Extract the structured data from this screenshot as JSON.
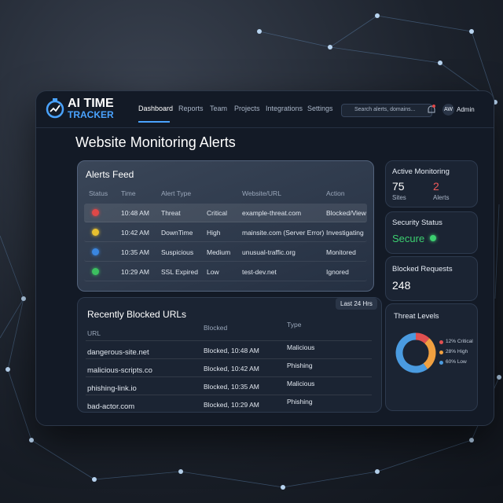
{
  "header": {
    "logo_line1": "AI TIME",
    "logo_line2": "TRACKER",
    "nav": [
      "Dashboard",
      "Reports",
      "Team",
      "Projects",
      "Integrations",
      "Settings"
    ],
    "search_placeholder": "Search alerts, domains...",
    "avatar": "AW",
    "user": "Admin"
  },
  "page_title": "Website Monitoring Alerts",
  "alerts_feed": {
    "title": "Alerts Feed",
    "columns": [
      "Status",
      "Time",
      "Alert Type",
      "Website/URL",
      "Action"
    ],
    "rows": [
      {
        "status_color": "#e04848",
        "time": "10:48 AM",
        "type": "Threat",
        "severity": "Critical",
        "url": "example-threat.com",
        "action": "Blocked/View"
      },
      {
        "status_color": "#e8c030",
        "time": "10:42 AM",
        "type": "DownTime",
        "severity": "High",
        "url": "mainsite.com (Server Error)",
        "action": "Investigating"
      },
      {
        "status_color": "#3a86e0",
        "time": "10:35 AM",
        "type": "Suspicious",
        "severity": "Medium",
        "url": "unusual-traffic.org",
        "action": "Monitored"
      },
      {
        "status_color": "#3cc060",
        "time": "10:29 AM",
        "type": "SSL Expired",
        "severity": "Low",
        "url": "test-dev.net",
        "action": "Ignored"
      }
    ]
  },
  "blocked_urls": {
    "title": "Recently Blocked URLs",
    "filter": "Last 24 Hrs",
    "columns": [
      "URL",
      "Blocked",
      "Type"
    ],
    "rows": [
      [
        "dangerous-site.net",
        "Blocked, 10:48 AM",
        "Malicious"
      ],
      [
        "malicious-scripts.co",
        "Blocked, 10:42 AM",
        "Phishing"
      ],
      [
        "phishing-link.io",
        "Blocked, 10:35 AM",
        "Malicious"
      ],
      [
        "bad-actor.com",
        "Blocked, 10:29 AM",
        "Phishing"
      ]
    ]
  },
  "active_monitoring": {
    "title": "Active Monitoring",
    "sites_count": 75,
    "sites_label": "Sites",
    "alerts_count": 2,
    "alerts_label": "Alerts"
  },
  "security_status": {
    "title": "Security Status",
    "value": "Secure"
  },
  "blocked_requests": {
    "title": "Blocked Requests",
    "value": 248
  },
  "threat_levels": {
    "title": "Threat Levels",
    "segments": [
      {
        "label": "12% Critical",
        "value": 12,
        "color": "#e05050"
      },
      {
        "label": "28% High",
        "value": 28,
        "color": "#f0a040"
      },
      {
        "label": "60% Low",
        "value": 60,
        "color": "#4a9be0"
      }
    ]
  }
}
